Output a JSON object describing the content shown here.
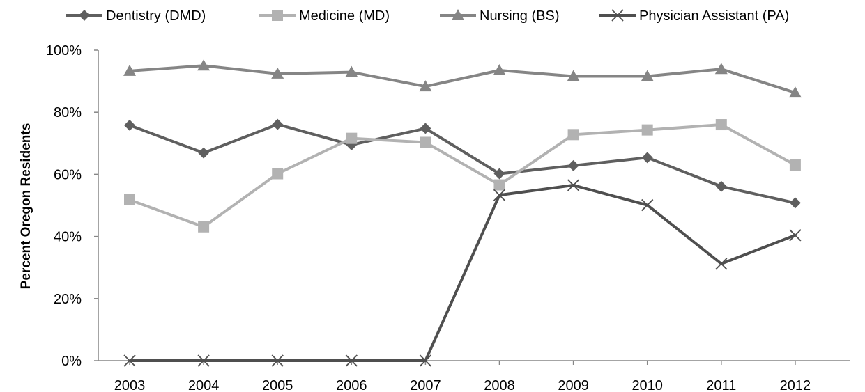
{
  "chart_data": {
    "type": "line",
    "title": "",
    "xlabel": "",
    "ylabel": "Percent Oregon Residents",
    "categories": [
      "2003",
      "2004",
      "2005",
      "2006",
      "2007",
      "2008",
      "2009",
      "2010",
      "2011",
      "2012"
    ],
    "ylim": [
      0,
      100
    ],
    "yticks": [
      0,
      20,
      40,
      60,
      80,
      100
    ],
    "ytick_labels": [
      "0%",
      "20%",
      "40%",
      "60%",
      "80%",
      "100%"
    ],
    "grid": false,
    "legend_position": "top",
    "series": [
      {
        "name": "Dentistry (DMD)",
        "marker": "diamond",
        "color": "#5f5f5f",
        "values": [
          75.8,
          66.9,
          76.1,
          69.5,
          74.8,
          60.2,
          62.8,
          65.4,
          56.1,
          50.8
        ]
      },
      {
        "name": "Medicine (MD)",
        "marker": "square",
        "color": "#b2b2b2",
        "values": [
          51.8,
          43.1,
          60.2,
          71.6,
          70.3,
          56.6,
          72.8,
          74.3,
          76.0,
          63.0
        ]
      },
      {
        "name": "Nursing (BS)",
        "marker": "triangle",
        "color": "#858585",
        "values": [
          93.3,
          95.0,
          92.4,
          92.9,
          88.3,
          93.5,
          91.6,
          91.6,
          93.9,
          86.3
        ]
      },
      {
        "name": "Physician Assistant (PA)",
        "marker": "x",
        "color": "#4f4f4f",
        "values": [
          0,
          0,
          0,
          0,
          0,
          53.3,
          56.5,
          50.1,
          31.2,
          40.4
        ]
      }
    ]
  }
}
